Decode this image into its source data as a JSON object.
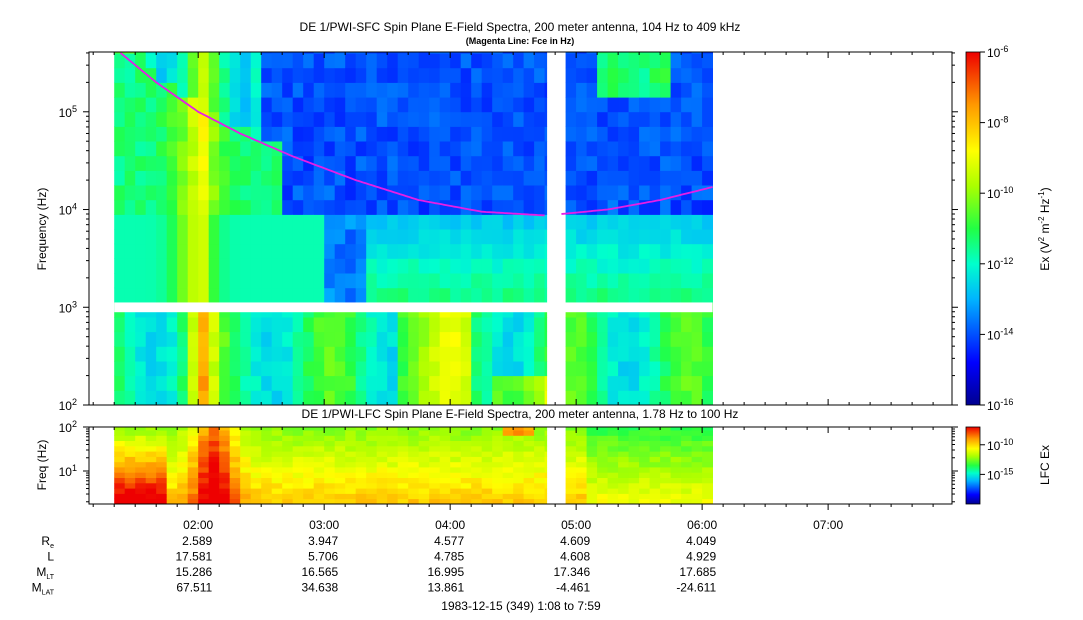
{
  "figure": {
    "title": "DE 1/PWI-SFC  Spin Plane E-Field Spectra, 200 meter antenna, 104 Hz to 409 kHz",
    "subtitle": "(Magenta Line: Fce in Hz)",
    "lower_title": "DE 1/PWI-LFC  Spin Plane E-Field Spectra, 200 meter antenna, 1.78 Hz to 100 Hz",
    "date_label": "1983-12-15 (349) 1:08 to 7:59"
  },
  "chart_data": [
    {
      "type": "heatmap",
      "name": "SFC",
      "ylabel": "Frequency (Hz)",
      "y_scale": "log",
      "ylim": [
        100,
        409000
      ],
      "y_ticks": [
        {
          "value": 100,
          "label": "10",
          "exp": "2"
        },
        {
          "value": 1000,
          "label": "10",
          "exp": "3"
        },
        {
          "value": 10000,
          "label": "10",
          "exp": "4"
        },
        {
          "value": 100000,
          "label": "10",
          "exp": "5"
        }
      ],
      "colorbar": {
        "label": "Ex (V2 m-2 Hz-1)",
        "scale": "log",
        "range": [
          1e-16,
          1e-06
        ],
        "ticks": [
          {
            "label": "10",
            "exp": "-6"
          },
          {
            "label": "10",
            "exp": "-8"
          },
          {
            "label": "10",
            "exp": "-10"
          },
          {
            "label": "10",
            "exp": "-12"
          },
          {
            "label": "10",
            "exp": "-14"
          },
          {
            "label": "10",
            "exp": "-16"
          }
        ]
      },
      "data_coverage": {
        "start": "01:20",
        "end": "06:05",
        "gap_start": "04:46",
        "gap_end": "04:52",
        "freq_gap_hz": [
          890,
          1120
        ]
      },
      "fce_line": {
        "name": "Fce",
        "color": "#e61ee6",
        "points": [
          {
            "t": "01:23",
            "f": 400000
          },
          {
            "t": "01:40",
            "f": 200000
          },
          {
            "t": "02:00",
            "f": 100000
          },
          {
            "t": "02:20",
            "f": 60000
          },
          {
            "t": "02:45",
            "f": 35000
          },
          {
            "t": "03:15",
            "f": 20000
          },
          {
            "t": "03:45",
            "f": 12500
          },
          {
            "t": "04:15",
            "f": 9500
          },
          {
            "t": "04:45",
            "f": 8700
          },
          {
            "t": "04:53",
            "f": 9000
          },
          {
            "t": "05:15",
            "f": 10000
          },
          {
            "t": "05:40",
            "f": 12500
          },
          {
            "t": "06:05",
            "f": 17000
          }
        ]
      }
    },
    {
      "type": "heatmap",
      "name": "LFC",
      "ylabel": "Freq (Hz)",
      "y_scale": "log",
      "ylim": [
        1.78,
        100
      ],
      "y_ticks": [
        {
          "value": 10,
          "label": "10",
          "exp": "1"
        },
        {
          "value": 100,
          "label": "10",
          "exp": "2"
        }
      ],
      "colorbar": {
        "label": "LFC Ex",
        "scale": "log",
        "ticks": [
          {
            "label": "10",
            "exp": "-10"
          },
          {
            "label": "10",
            "exp": "-15"
          }
        ]
      },
      "data_coverage": {
        "start": "01:20",
        "end": "06:05",
        "gap_start": "04:46",
        "gap_end": "04:52"
      }
    }
  ],
  "time_axis": {
    "range_min": [
      68,
      479
    ],
    "labels": [
      {
        "t": 120,
        "label": "02:00"
      },
      {
        "t": 180,
        "label": "03:00"
      },
      {
        "t": 240,
        "label": "04:00"
      },
      {
        "t": 300,
        "label": "05:00"
      },
      {
        "t": 360,
        "label": "06:00"
      },
      {
        "t": 420,
        "label": "07:00"
      }
    ]
  },
  "ephemeris": {
    "rows": [
      {
        "label": "R",
        "sub": "e",
        "values": [
          "2.589",
          "3.947",
          "4.577",
          "4.609",
          "4.049"
        ]
      },
      {
        "label": "L",
        "sub": "",
        "values": [
          "17.581",
          "5.706",
          "4.785",
          "4.608",
          "4.929"
        ]
      },
      {
        "label": "M",
        "sub": "LT",
        "values": [
          "15.286",
          "16.565",
          "16.995",
          "17.346",
          "17.685"
        ]
      },
      {
        "label": "M",
        "sub": "LAT",
        "values": [
          "67.511",
          "34.638",
          "13.861",
          "-4.461",
          "-24.611"
        ]
      }
    ]
  }
}
